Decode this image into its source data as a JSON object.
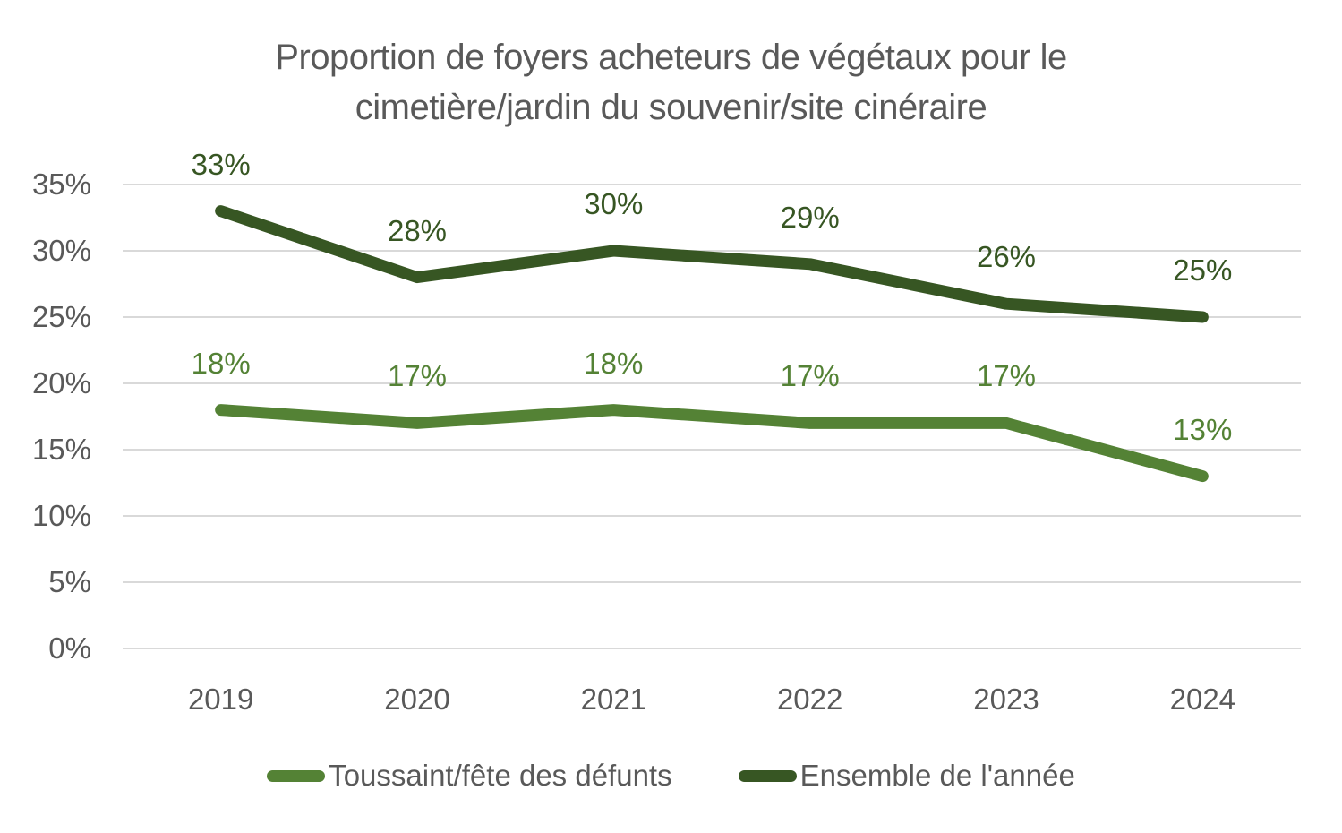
{
  "colors": {
    "text": "#595959",
    "gridline": "#d9d9d9",
    "series_light_green": "#548235",
    "series_dark_green": "#375623"
  },
  "chart_data": {
    "type": "line",
    "title": "Proportion de foyers acheteurs de végétaux pour le cimetière/jardin du souvenir/site cinéraire",
    "categories": [
      "2019",
      "2020",
      "2021",
      "2022",
      "2023",
      "2024"
    ],
    "series": [
      {
        "name": "Toussaint/fête des défunts",
        "color": "#548235",
        "values": [
          18,
          17,
          18,
          17,
          17,
          13
        ],
        "labels": [
          "18%",
          "17%",
          "18%",
          "17%",
          "17%",
          "13%"
        ]
      },
      {
        "name": "Ensemble de l'année",
        "color": "#375623",
        "values": [
          33,
          28,
          30,
          29,
          26,
          25
        ],
        "labels": [
          "33%",
          "28%",
          "30%",
          "29%",
          "26%",
          "25%"
        ]
      }
    ],
    "ylim": [
      0,
      35
    ],
    "ytick_step": 5,
    "ytick_labels": [
      "0%",
      "5%",
      "10%",
      "15%",
      "20%",
      "25%",
      "30%",
      "35%"
    ],
    "xlabel": "",
    "ylabel": "",
    "grid": true,
    "legend_position": "bottom"
  }
}
